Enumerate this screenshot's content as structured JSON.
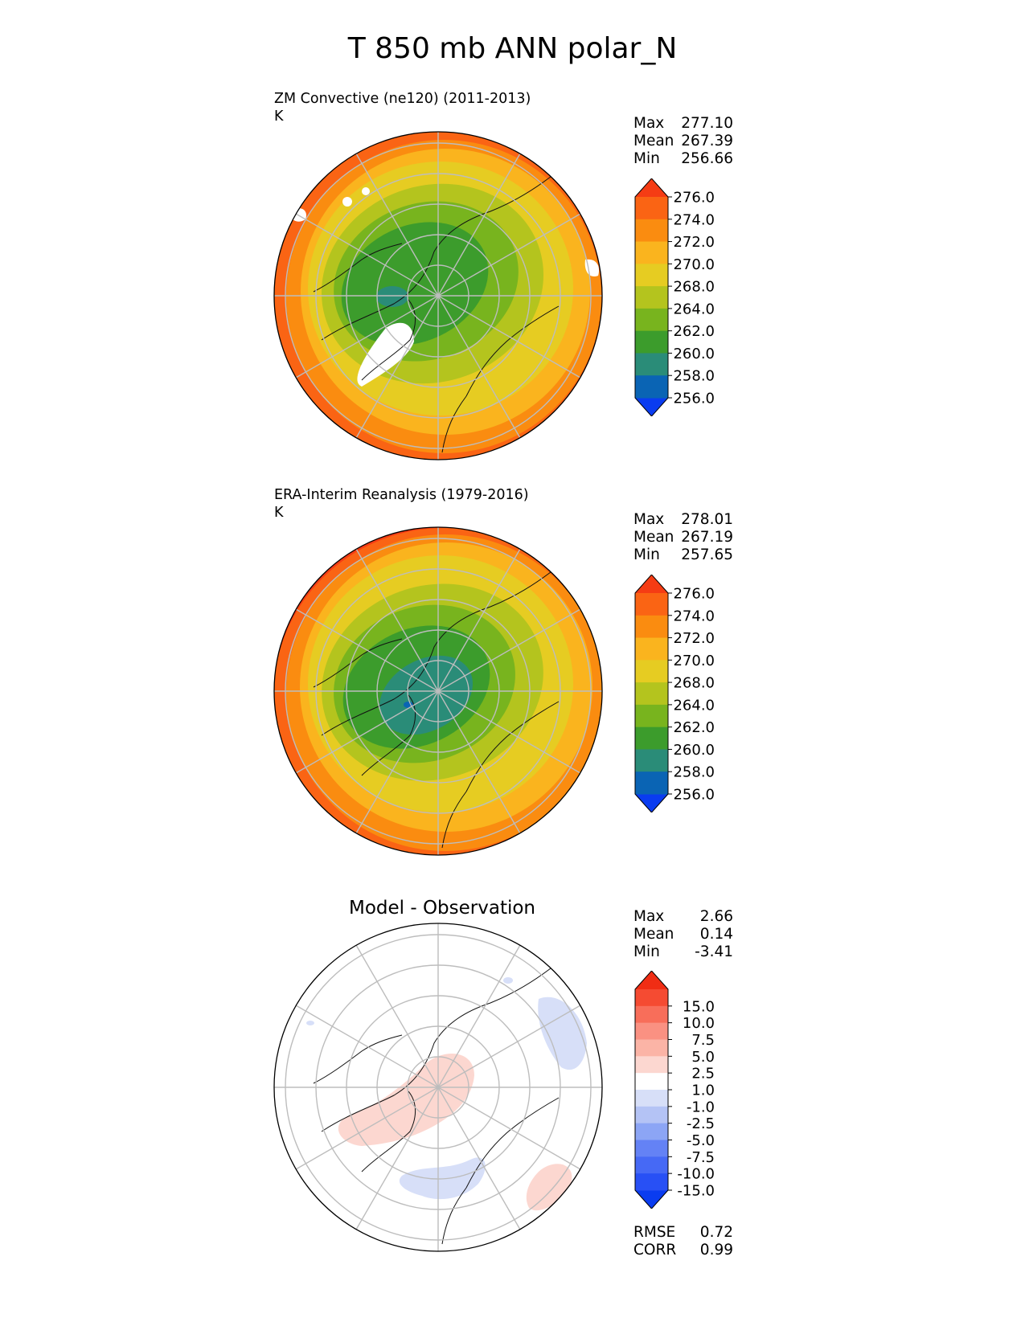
{
  "figure_title": "T 850 mb ANN polar_N",
  "panels": [
    {
      "title": "ZM Convective (ne120) (2011-2013)",
      "units": "K",
      "stats": [
        {
          "label": "Max",
          "value": "277.10"
        },
        {
          "label": "Mean",
          "value": "267.39"
        },
        {
          "label": "Min",
          "value": "256.66"
        }
      ]
    },
    {
      "title": "ERA-Interim Reanalysis (1979-2016)",
      "units": "K",
      "stats": [
        {
          "label": "Max",
          "value": "278.01"
        },
        {
          "label": "Mean",
          "value": "267.19"
        },
        {
          "label": "Min",
          "value": "257.65"
        }
      ]
    },
    {
      "title": "Model - Observation",
      "stats": [
        {
          "label": "Max",
          "value": "2.66"
        },
        {
          "label": "Mean",
          "value": "0.14"
        },
        {
          "label": "Min",
          "value": "-3.41"
        }
      ],
      "extra_stats": [
        {
          "label": "RMSE",
          "value": "0.72"
        },
        {
          "label": "CORR",
          "value": "0.99"
        }
      ]
    }
  ],
  "chart_data": [
    {
      "type": "heatmap",
      "projection": "north polar stereographic",
      "title": "ZM Convective (ne120) (2011-2013)",
      "units": "K",
      "colorbar": {
        "ticks": [
          "256.0",
          "258.0",
          "260.0",
          "262.0",
          "264.0",
          "268.0",
          "270.0",
          "272.0",
          "274.0",
          "276.0"
        ],
        "colors": [
          "#0a3cf0",
          "#0a64b4",
          "#2a8c78",
          "#3c9c2c",
          "#78b41e",
          "#b4c41e",
          "#e6cc22",
          "#fab41e",
          "#fa8c10",
          "#fa6414",
          "#f53c14"
        ],
        "extend": "both"
      },
      "stats": {
        "max": 277.1,
        "mean": 267.39,
        "min": 256.66
      }
    },
    {
      "type": "heatmap",
      "projection": "north polar stereographic",
      "title": "ERA-Interim Reanalysis (1979-2016)",
      "units": "K",
      "colorbar": {
        "ticks": [
          "256.0",
          "258.0",
          "260.0",
          "262.0",
          "264.0",
          "268.0",
          "270.0",
          "272.0",
          "274.0",
          "276.0"
        ],
        "colors": [
          "#0a3cf0",
          "#0a64b4",
          "#2a8c78",
          "#3c9c2c",
          "#78b41e",
          "#b4c41e",
          "#e6cc22",
          "#fab41e",
          "#fa8c10",
          "#fa6414",
          "#f53c14"
        ],
        "extend": "both"
      },
      "stats": {
        "max": 278.01,
        "mean": 267.19,
        "min": 257.65
      }
    },
    {
      "type": "heatmap",
      "projection": "north polar stereographic",
      "title": "Model - Observation",
      "colorbar": {
        "ticks": [
          "-15.0",
          "-10.0",
          "-7.5",
          "-5.0",
          "-2.5",
          "-1.0",
          "1.0",
          "2.5",
          "5.0",
          "7.5",
          "10.0",
          "15.0"
        ],
        "colors": [
          "#0a3cf0",
          "#2850f5",
          "#4669f5",
          "#6482f5",
          "#8ca5f5",
          "#b4c3f5",
          "#d7dff8",
          "#ffffff",
          "#fcd7d0",
          "#fbb4a6",
          "#fa9182",
          "#f86e5a",
          "#f54b32",
          "#f02d14"
        ],
        "extend": "both"
      },
      "stats": {
        "max": 2.66,
        "mean": 0.14,
        "min": -3.41,
        "rmse": 0.72,
        "corr": 0.99
      }
    }
  ]
}
